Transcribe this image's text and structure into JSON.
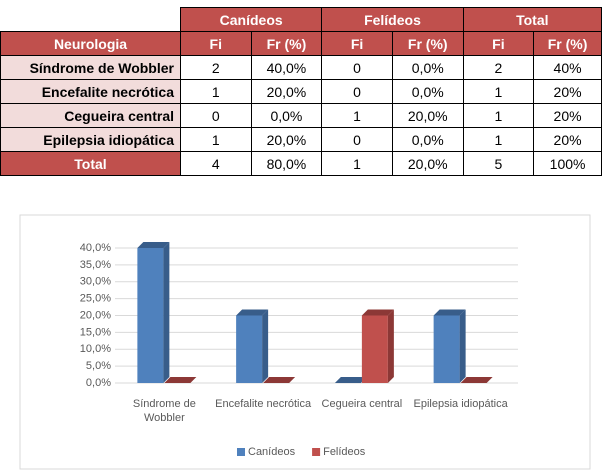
{
  "table": {
    "groups": [
      "Canídeos",
      "Felídeos",
      "Total"
    ],
    "header": [
      "Neurologia",
      "Fi",
      "Fr (%)",
      "Fi",
      "Fr (%)",
      "Fi",
      "Fr (%)"
    ],
    "rows": [
      [
        "Síndrome de Wobbler",
        "2",
        "40,0%",
        "0",
        "0,0%",
        "2",
        "40%"
      ],
      [
        "Encefalite necrótica",
        "1",
        "20,0%",
        "0",
        "0,0%",
        "1",
        "20%"
      ],
      [
        "Cegueira central",
        "0",
        "0,0%",
        "1",
        "20,0%",
        "1",
        "20%"
      ],
      [
        "Epilepsia idiopática",
        "1",
        "20,0%",
        "0",
        "0,0%",
        "1",
        "20%"
      ]
    ],
    "total": [
      "Total",
      "4",
      "80,0%",
      "1",
      "20,0%",
      "5",
      "100%"
    ]
  },
  "chart_data": {
    "type": "bar",
    "categories": [
      "Síndrome de Wobbler",
      "Encefalite necrótica",
      "Cegueira central",
      "Epilepsia idiopática"
    ],
    "series": [
      {
        "name": "Canídeos",
        "color": "#4f81bd",
        "values": [
          40,
          20,
          0,
          20
        ]
      },
      {
        "name": "Felídeos",
        "color": "#c0504d",
        "values": [
          0,
          0,
          20,
          0
        ]
      }
    ],
    "ylim": [
      0,
      40
    ],
    "yticks": [
      {
        "value": 0,
        "label": "0,0%"
      },
      {
        "value": 5,
        "label": "5,0%"
      },
      {
        "value": 10,
        "label": "10,0%"
      },
      {
        "value": 15,
        "label": "15,0%"
      },
      {
        "value": 20,
        "label": "20,0%"
      },
      {
        "value": 25,
        "label": "25,0%"
      },
      {
        "value": 30,
        "label": "30,0%"
      },
      {
        "value": 35,
        "label": "35,0%"
      },
      {
        "value": 40,
        "label": "40,0%"
      }
    ],
    "grid": true,
    "legend": "bottom"
  }
}
